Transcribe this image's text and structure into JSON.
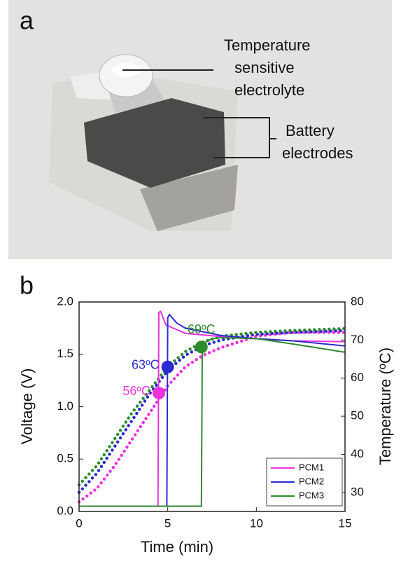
{
  "photo": {
    "label": "a",
    "annotations": [
      "Temperature",
      "sensitive",
      "electrolyte",
      "Battery",
      "electrodes"
    ]
  },
  "chart_data": {
    "type": "line",
    "panel_label": "b",
    "x_label": "Time (min)",
    "y_label": "Voltage (V)",
    "y2_label": "Temperature (ºC)",
    "xlim": [
      0,
      15
    ],
    "xticks": [
      0,
      5,
      10,
      15
    ],
    "ylim": [
      0,
      2
    ],
    "yticks": [
      {
        "value": 0,
        "label": "0.0"
      },
      {
        "value": 0.5,
        "label": "0.5"
      },
      {
        "value": 1,
        "label": "1.0"
      },
      {
        "value": 1.5,
        "label": "1.5"
      },
      {
        "value": 2,
        "label": "2.0"
      }
    ],
    "y2lim": [
      25,
      80
    ],
    "y2ticks": [
      30,
      40,
      50,
      60,
      70,
      80
    ],
    "legend": "lower right",
    "series": [
      {
        "name": "PCM1",
        "color": "#ee33dd",
        "x": [
          0,
          4.45,
          4.5,
          4.6,
          4.9,
          6,
          8,
          10,
          12,
          15
        ],
        "values": [
          0.05,
          0.05,
          1.9,
          1.91,
          1.78,
          1.7,
          1.67,
          1.65,
          1.63,
          1.62
        ]
      },
      {
        "name": "PCM2",
        "color": "#2b2bd0",
        "x": [
          0,
          4.95,
          5.0,
          5.1,
          5.5,
          6,
          8,
          10,
          12,
          15
        ],
        "values": [
          0.05,
          0.05,
          1.85,
          1.88,
          1.8,
          1.75,
          1.68,
          1.65,
          1.63,
          1.58
        ]
      },
      {
        "name": "PCM3",
        "color": "#2e8b2e",
        "x": [
          0,
          6.9,
          6.95,
          7.5,
          8,
          10,
          12,
          15
        ],
        "values": [
          0.05,
          0.05,
          1.6,
          1.65,
          1.66,
          1.65,
          1.6,
          1.52
        ]
      }
    ],
    "temperature_series": [
      {
        "color": "#ee33dd",
        "axis": "y2",
        "x": [
          0,
          1,
          2,
          3,
          4,
          5,
          6,
          7,
          8,
          10,
          12,
          15
        ],
        "values": [
          27.5,
          31,
          37,
          44,
          51,
          58,
          63,
          66,
          68,
          71,
          72,
          72
        ]
      },
      {
        "color": "#2b2bd0",
        "axis": "y2",
        "x": [
          0,
          1,
          2,
          3,
          4,
          5,
          6,
          7,
          8,
          10,
          12,
          15
        ],
        "values": [
          30,
          35,
          42,
          49,
          56,
          62,
          66,
          68.5,
          70,
          71.5,
          72,
          72.5
        ]
      },
      {
        "color": "#2e8b2e",
        "axis": "y2",
        "x": [
          0,
          1,
          2,
          3,
          4,
          5,
          6,
          7,
          8,
          10,
          12,
          15
        ],
        "values": [
          32,
          37,
          44,
          51,
          57,
          63,
          67,
          69.5,
          71,
          72,
          72.5,
          73
        ]
      }
    ],
    "annotations": [
      {
        "text": "56ºC",
        "x": 4.5,
        "y": 1.13,
        "color": "#ee33dd"
      },
      {
        "text": "63ºC",
        "x": 5.0,
        "y": 1.38,
        "color": "#2b2bd0"
      },
      {
        "text": "69ºC",
        "x": 6.9,
        "y": 1.57,
        "color": "#2e8b2e"
      }
    ]
  }
}
